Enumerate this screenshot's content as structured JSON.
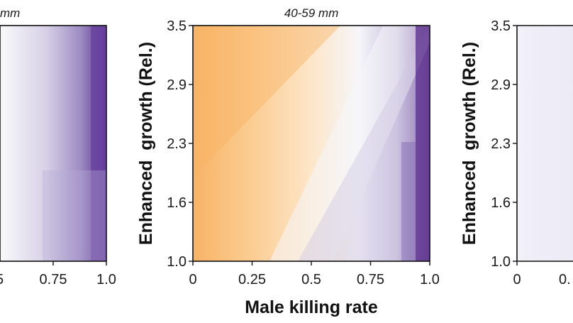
{
  "chart_data": [
    {
      "type": "heatmap",
      "title": "mm",
      "xlabel": "",
      "ylabel": "",
      "x_ticks": [
        "0.75",
        "1.0"
      ],
      "x_ticks_partial": [
        "5"
      ],
      "y_ticks": [],
      "x_range": [
        0,
        1.0
      ],
      "y_range": [
        1.0,
        3.5
      ],
      "colormap": {
        "low": "#f8b366",
        "mid": "#f6f6fa",
        "high": "#5a2d8c"
      },
      "cells": "continuous gradient: orange at low male killing rate, transitioning through white to deep purple at male killing rate 1.0; boundary shifts right with enhanced growth",
      "boundary_x_at_y": {
        "1.0": 0.68,
        "3.5": 0.83
      }
    },
    {
      "type": "heatmap",
      "title": "40-59 mm",
      "xlabel": "Male killing rate",
      "ylabel": "Enhanced  growth (Rel.)",
      "x_ticks": [
        "0",
        "0.25",
        "0.5",
        "0.75",
        "1.0"
      ],
      "y_ticks": [
        "1.0",
        "1.6",
        "2.3",
        "2.9",
        "3.5"
      ],
      "x_range": [
        0,
        1.0
      ],
      "y_range": [
        1.0,
        3.5
      ],
      "colormap": {
        "low": "#f8b366",
        "mid": "#f6f6fa",
        "high": "#5a2d8c"
      },
      "cells": "orange strongest at low male killing rate and high enhanced growth, white band running diagonally, purple at high male killing rate and low enhanced growth",
      "boundary_x_at_y": {
        "1.0": 0.35,
        "3.5": 0.8
      }
    },
    {
      "type": "heatmap",
      "title": "",
      "xlabel": "",
      "ylabel": "Enhanced  growth (Rel.)",
      "x_ticks": [
        "0"
      ],
      "x_ticks_partial": [
        "0."
      ],
      "y_ticks": [
        "1.0",
        "1.6",
        "2.3",
        "2.9",
        "3.5"
      ],
      "x_range": [
        0,
        1.0
      ],
      "y_range": [
        1.0,
        3.5
      ],
      "colormap": {
        "low": "#f8b366",
        "mid": "#f6f6fa",
        "high": "#5a2d8c"
      },
      "cells": "nearly uniform pale lavender-white"
    }
  ]
}
